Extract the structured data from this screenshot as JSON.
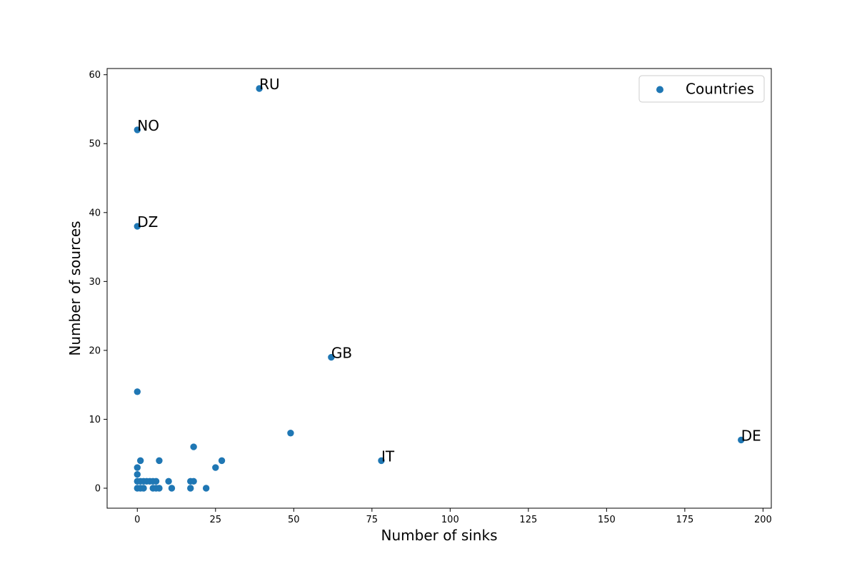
{
  "chart_data": {
    "type": "scatter",
    "xlabel": "Number of sinks",
    "ylabel": "Number of sources",
    "xlim": [
      -9.65,
      202.65
    ],
    "ylim": [
      -2.9,
      60.9
    ],
    "xticks": [
      0,
      25,
      50,
      75,
      100,
      125,
      150,
      175,
      200
    ],
    "yticks": [
      0,
      10,
      20,
      30,
      40,
      50,
      60
    ],
    "grid": false,
    "legend": {
      "placement": "top-right",
      "entries": [
        "Countries"
      ]
    },
    "colors": {
      "series": "#1f77b4",
      "axis": "#000000",
      "background": "#ffffff"
    },
    "series": [
      {
        "name": "Countries",
        "points": [
          [
            0,
            0
          ],
          [
            0,
            1
          ],
          [
            0,
            2
          ],
          [
            0,
            3
          ],
          [
            0,
            14
          ],
          [
            0,
            38
          ],
          [
            0,
            52
          ],
          [
            1,
            0
          ],
          [
            1,
            1
          ],
          [
            1,
            4
          ],
          [
            2,
            0
          ],
          [
            2,
            1
          ],
          [
            3,
            1
          ],
          [
            4,
            1
          ],
          [
            5,
            0
          ],
          [
            5,
            1
          ],
          [
            6,
            0
          ],
          [
            6,
            1
          ],
          [
            7,
            0
          ],
          [
            7,
            4
          ],
          [
            10,
            1
          ],
          [
            11,
            0
          ],
          [
            17,
            0
          ],
          [
            17,
            1
          ],
          [
            18,
            1
          ],
          [
            18,
            6
          ],
          [
            22,
            0
          ],
          [
            25,
            3
          ],
          [
            27,
            4
          ],
          [
            39,
            58
          ],
          [
            49,
            8
          ],
          [
            62,
            19
          ],
          [
            78,
            4
          ],
          [
            193,
            7
          ]
        ]
      }
    ],
    "annotations": [
      {
        "text": "RU",
        "x": 39,
        "y": 58
      },
      {
        "text": "NO",
        "x": 0,
        "y": 52
      },
      {
        "text": "DZ",
        "x": 0,
        "y": 38
      },
      {
        "text": "GB",
        "x": 62,
        "y": 19
      },
      {
        "text": "IT",
        "x": 78,
        "y": 4
      },
      {
        "text": "DE",
        "x": 193,
        "y": 7
      }
    ]
  }
}
